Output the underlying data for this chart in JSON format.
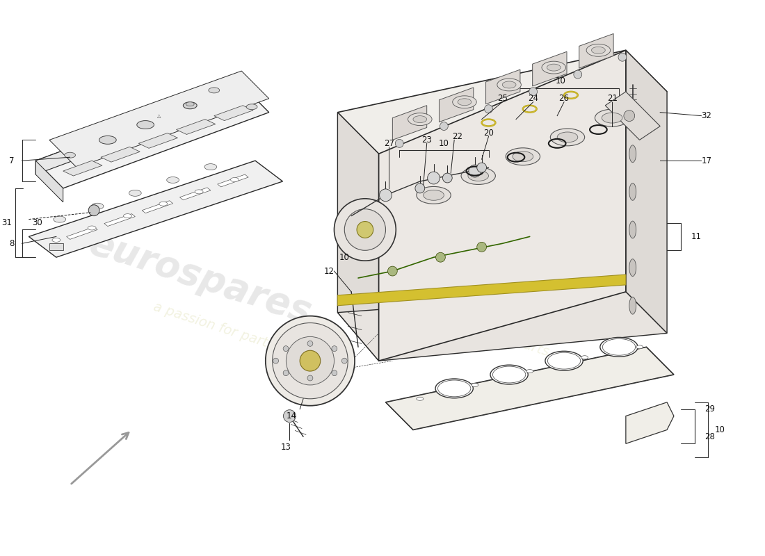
{
  "bg_color": "#ffffff",
  "line_color": "#2a2a2a",
  "fill_light": "#f4f4f4",
  "fill_mid": "#e8e8e8",
  "fill_dark": "#d8d8d8",
  "yellow_seal": "#d4c030",
  "watermark1": "eurospares",
  "watermark2": "a passion for parts",
  "label_color": "#111111",
  "fs": 8.5,
  "lc": "#2a2a2a",
  "lw": 1.0
}
